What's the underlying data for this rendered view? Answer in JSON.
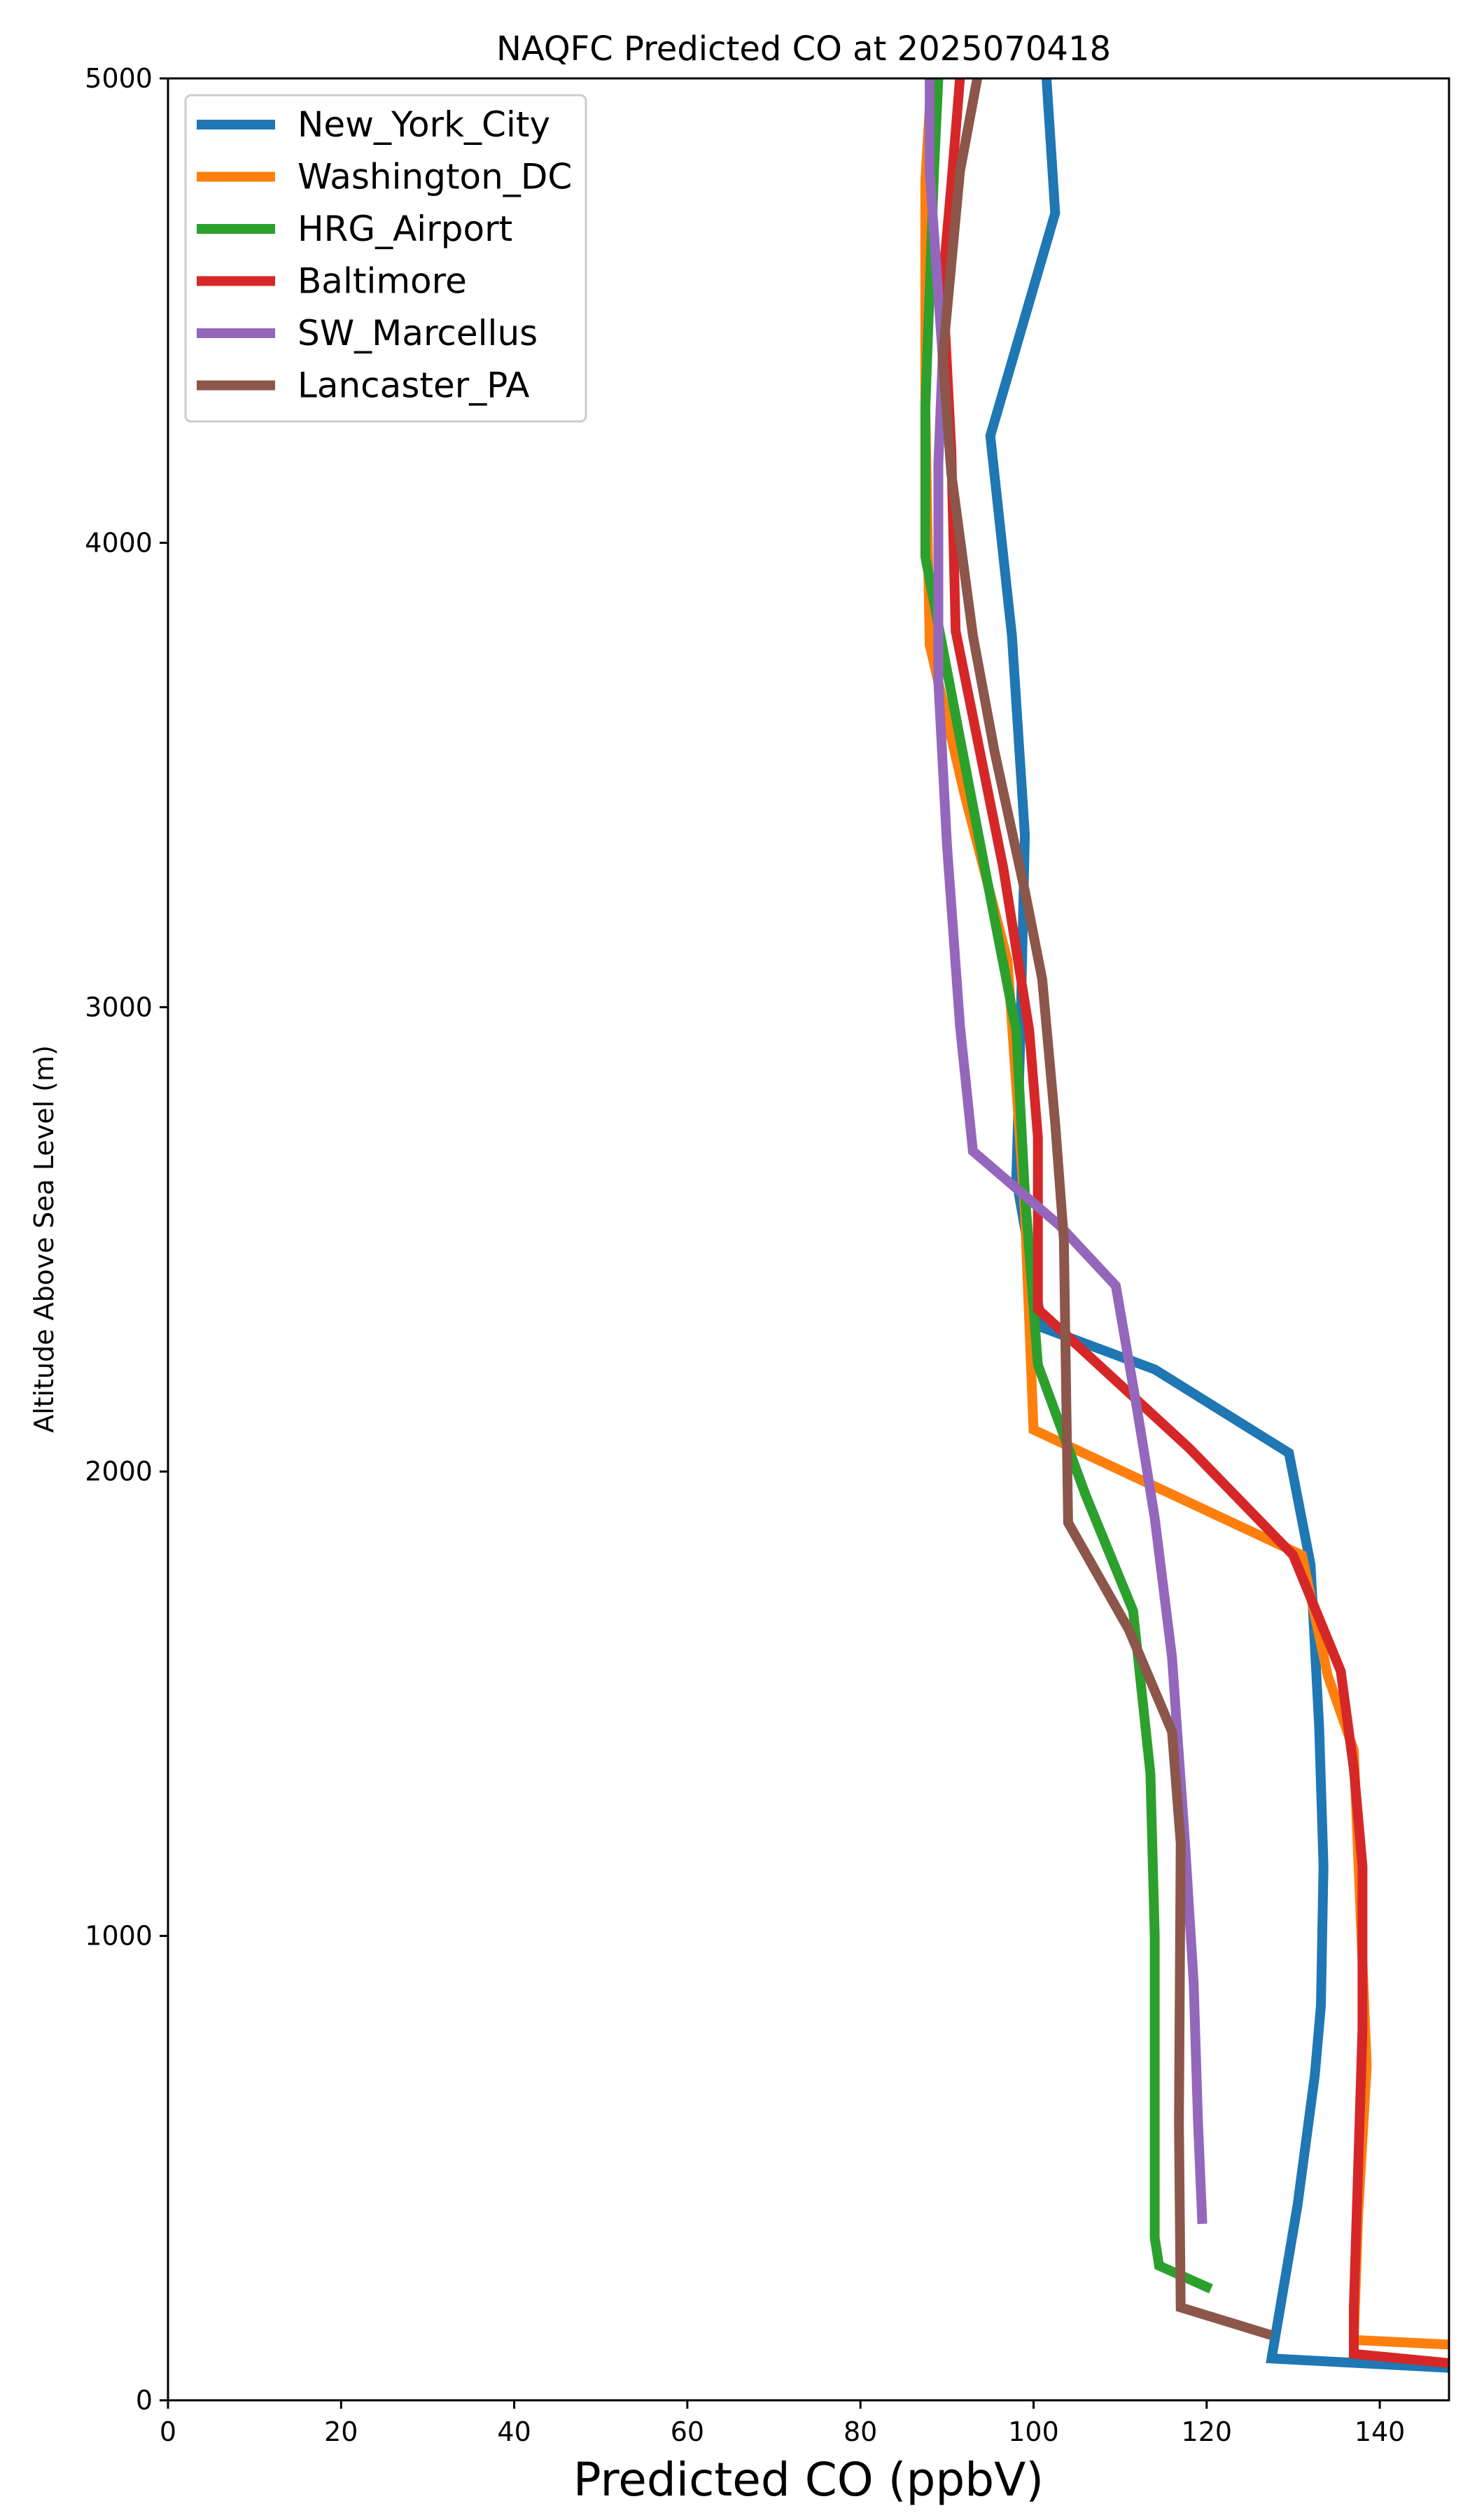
{
  "chart_data": {
    "type": "line",
    "title": "NAQFC Predicted CO at 2025070418",
    "xlabel": "Predicted CO (ppbV)",
    "ylabel": "Altitude Above Sea Level (m)",
    "xlim": [
      0,
      148
    ],
    "ylim": [
      0,
      5000
    ],
    "xticks": [
      "0",
      "20",
      "40",
      "60",
      "80",
      "100",
      "120",
      "140"
    ],
    "yticks": [
      "0",
      "1000",
      "2000",
      "3000",
      "4000",
      "5000"
    ],
    "grid": false,
    "legend_position": "top-left",
    "series": [
      {
        "name": "New_York_City",
        "color": "#1f77b4",
        "points": [
          [
            148,
            70
          ],
          [
            127.5,
            90
          ],
          [
            128.5,
            200
          ],
          [
            130.5,
            420
          ],
          [
            132.5,
            700
          ],
          [
            133.2,
            850
          ],
          [
            133.5,
            1150
          ],
          [
            133,
            1450
          ],
          [
            132,
            1800
          ],
          [
            129.5,
            2040
          ],
          [
            114,
            2220
          ],
          [
            101,
            2310
          ],
          [
            98,
            2630
          ],
          [
            98.5,
            2950
          ],
          [
            99,
            3370
          ],
          [
            97.5,
            3800
          ],
          [
            95,
            4230
          ],
          [
            102.5,
            4710
          ],
          [
            101.5,
            5000
          ]
        ]
      },
      {
        "name": "Washington_DC",
        "color": "#ff7f0e",
        "points": [
          [
            148,
            120
          ],
          [
            137,
            130
          ],
          [
            137.5,
            400
          ],
          [
            138.5,
            720
          ],
          [
            137,
            1400
          ],
          [
            134,
            1560
          ],
          [
            131,
            1820
          ],
          [
            100,
            2090
          ],
          [
            99,
            2560
          ],
          [
            97,
            3100
          ],
          [
            92,
            3460
          ],
          [
            88,
            3780
          ],
          [
            87.5,
            4290
          ],
          [
            87.5,
            4780
          ],
          [
            88.2,
            5000
          ]
        ]
      },
      {
        "name": "HRG_Airport",
        "color": "#2ca02c",
        "points": [
          [
            120.5,
            240
          ],
          [
            114.5,
            290
          ],
          [
            114,
            350
          ],
          [
            114,
            1000
          ],
          [
            113.5,
            1350
          ],
          [
            111.5,
            1700
          ],
          [
            106,
            1950
          ],
          [
            100.5,
            2230
          ],
          [
            99,
            2600
          ],
          [
            98,
            2950
          ],
          [
            95.5,
            3190
          ],
          [
            92,
            3530
          ],
          [
            87.5,
            3970
          ],
          [
            87.5,
            4290
          ],
          [
            88.5,
            4800
          ],
          [
            89,
            5000
          ]
        ]
      },
      {
        "name": "Baltimore",
        "color": "#d62728",
        "points": [
          [
            148,
            80
          ],
          [
            137,
            100
          ],
          [
            137,
            200
          ],
          [
            138,
            800
          ],
          [
            138,
            1150
          ],
          [
            137,
            1360
          ],
          [
            135.5,
            1570
          ],
          [
            130,
            1820
          ],
          [
            118,
            2050
          ],
          [
            100.5,
            2350
          ],
          [
            100.5,
            2720
          ],
          [
            99.5,
            2950
          ],
          [
            96.5,
            3300
          ],
          [
            91,
            3810
          ],
          [
            90.5,
            4200
          ],
          [
            89.5,
            4560
          ],
          [
            90.5,
            4770
          ],
          [
            91.5,
            5000
          ]
        ]
      },
      {
        "name": "SW_Marcellus",
        "color": "#9467bd",
        "points": [
          [
            119.5,
            380
          ],
          [
            119,
            600
          ],
          [
            118.5,
            900
          ],
          [
            117.5,
            1200
          ],
          [
            116,
            1600
          ],
          [
            114,
            1900
          ],
          [
            112,
            2130
          ],
          [
            109.5,
            2400
          ],
          [
            103,
            2530
          ],
          [
            93,
            2690
          ],
          [
            91.5,
            2960
          ],
          [
            90,
            3350
          ],
          [
            89,
            3700
          ],
          [
            89,
            4170
          ],
          [
            89.5,
            4400
          ],
          [
            88,
            4800
          ],
          [
            88,
            5000
          ]
        ]
      },
      {
        "name": "Lancaster_PA",
        "color": "#8c564b",
        "points": [
          [
            127.5,
            140
          ],
          [
            117,
            200
          ],
          [
            116.8,
            600
          ],
          [
            117,
            1200
          ],
          [
            116,
            1440
          ],
          [
            111,
            1660
          ],
          [
            104,
            1890
          ],
          [
            103.5,
            2500
          ],
          [
            102.5,
            2750
          ],
          [
            101,
            3060
          ],
          [
            99,
            3250
          ],
          [
            95.5,
            3550
          ],
          [
            93,
            3800
          ],
          [
            90.5,
            4150
          ],
          [
            89.5,
            4400
          ],
          [
            91.5,
            4800
          ],
          [
            93.5,
            5000
          ]
        ]
      }
    ]
  }
}
